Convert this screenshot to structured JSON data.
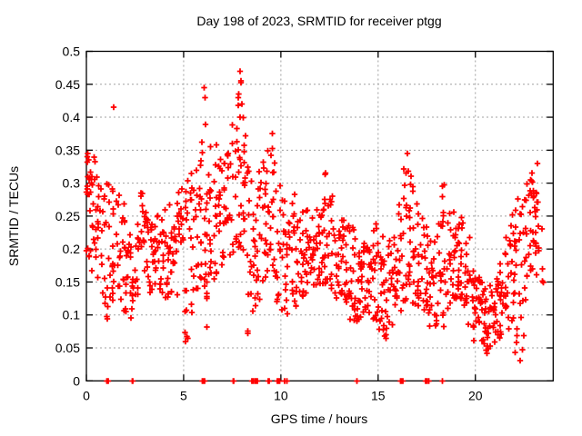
{
  "window": {
    "background": "#ffffff"
  },
  "chart_data": {
    "type": "scatter",
    "title": "Day 198 of 2023, SRMTID for receiver ptgg",
    "xlabel": "GPS time / hours",
    "ylabel": "SRMTID / TECUs",
    "xlim": [
      0,
      24
    ],
    "ylim": [
      0,
      0.5
    ],
    "grid": true,
    "legend": "none",
    "marker": "plus",
    "marker_color": "#ff0000",
    "grid_color": "#a0a0a0",
    "axis_color": "#000000",
    "xticks": [
      {
        "v": 0,
        "label": "0"
      },
      {
        "v": 5,
        "label": "5"
      },
      {
        "v": 10,
        "label": "10"
      },
      {
        "v": 15,
        "label": "15"
      },
      {
        "v": 20,
        "label": "20"
      }
    ],
    "yticks": [
      {
        "v": 0.0,
        "label": "0"
      },
      {
        "v": 0.05,
        "label": "0.05"
      },
      {
        "v": 0.1,
        "label": "0.1"
      },
      {
        "v": 0.15,
        "label": "0.15"
      },
      {
        "v": 0.2,
        "label": "0.2"
      },
      {
        "v": 0.25,
        "label": "0.25"
      },
      {
        "v": 0.3,
        "label": "0.3"
      },
      {
        "v": 0.35,
        "label": "0.35"
      },
      {
        "v": 0.4,
        "label": "0.4"
      },
      {
        "v": 0.45,
        "label": "0.45"
      },
      {
        "v": 0.5,
        "label": "0.5"
      }
    ],
    "density_columns_comment": "each row = [hour_start, y_min, y_max, n_points, bottom_bias] for a 0.25h column of + markers read from the plot",
    "density_columns": [
      [
        0.0,
        0.17,
        0.36,
        20,
        0.65
      ],
      [
        0.25,
        0.16,
        0.355,
        16,
        0.8
      ],
      [
        0.5,
        0.14,
        0.31,
        11,
        1
      ],
      [
        0.75,
        0.09,
        0.3,
        11,
        1
      ],
      [
        1.0,
        0.09,
        0.3,
        12,
        1.1
      ],
      [
        1.25,
        0.12,
        0.415,
        14,
        1.5
      ],
      [
        1.5,
        0.11,
        0.3,
        11,
        1.1
      ],
      [
        1.75,
        0.1,
        0.27,
        12,
        1.1
      ],
      [
        2.0,
        0.1,
        0.24,
        12,
        1.1
      ],
      [
        2.25,
        0.095,
        0.21,
        12,
        1.1
      ],
      [
        2.5,
        0.12,
        0.24,
        12,
        1
      ],
      [
        2.75,
        0.13,
        0.29,
        12,
        1.1
      ],
      [
        3.0,
        0.14,
        0.26,
        12,
        1
      ],
      [
        3.25,
        0.13,
        0.25,
        13,
        1
      ],
      [
        3.5,
        0.14,
        0.26,
        13,
        1
      ],
      [
        3.75,
        0.13,
        0.25,
        13,
        1
      ],
      [
        4.0,
        0.12,
        0.26,
        13,
        1
      ],
      [
        4.25,
        0.13,
        0.27,
        12,
        1
      ],
      [
        4.5,
        0.12,
        0.28,
        12,
        1
      ],
      [
        4.75,
        0.14,
        0.3,
        12,
        1
      ],
      [
        5.0,
        0.06,
        0.31,
        14,
        1.2
      ],
      [
        5.25,
        0.1,
        0.32,
        12,
        1
      ],
      [
        5.5,
        0.14,
        0.34,
        13,
        1
      ],
      [
        5.75,
        0.12,
        0.38,
        14,
        1.2
      ],
      [
        6.0,
        0.08,
        0.445,
        18,
        1.4
      ],
      [
        6.25,
        0.14,
        0.4,
        14,
        1.2
      ],
      [
        6.5,
        0.15,
        0.4,
        13,
        1.2
      ],
      [
        6.75,
        0.16,
        0.34,
        12,
        1
      ],
      [
        7.0,
        0.17,
        0.33,
        12,
        1
      ],
      [
        7.25,
        0.18,
        0.35,
        12,
        1
      ],
      [
        7.5,
        0.17,
        0.4,
        13,
        1.1
      ],
      [
        7.75,
        0.2,
        0.47,
        16,
        1.3
      ],
      [
        8.0,
        0.16,
        0.42,
        14,
        1.3
      ],
      [
        8.25,
        0.07,
        0.33,
        14,
        1.1
      ],
      [
        8.5,
        0.1,
        0.3,
        13,
        1.1
      ],
      [
        8.75,
        0.12,
        0.32,
        13,
        1
      ],
      [
        9.0,
        0.14,
        0.34,
        13,
        1
      ],
      [
        9.25,
        0.15,
        0.35,
        13,
        1
      ],
      [
        9.5,
        0.14,
        0.38,
        13,
        1.1
      ],
      [
        9.75,
        0.12,
        0.3,
        12,
        1.1
      ],
      [
        10.0,
        0.1,
        0.28,
        12,
        1.1
      ],
      [
        10.25,
        0.1,
        0.24,
        12,
        1.1
      ],
      [
        10.5,
        0.1,
        0.29,
        13,
        1.2
      ],
      [
        10.75,
        0.11,
        0.26,
        13,
        1.1
      ],
      [
        11.0,
        0.12,
        0.26,
        13,
        1
      ],
      [
        11.25,
        0.13,
        0.27,
        13,
        1
      ],
      [
        11.5,
        0.14,
        0.27,
        13,
        1
      ],
      [
        11.75,
        0.13,
        0.26,
        13,
        1
      ],
      [
        12.0,
        0.14,
        0.28,
        13,
        1
      ],
      [
        12.25,
        0.14,
        0.315,
        14,
        1
      ],
      [
        12.5,
        0.13,
        0.28,
        12,
        1
      ],
      [
        12.75,
        0.12,
        0.26,
        12,
        1
      ],
      [
        13.0,
        0.11,
        0.25,
        13,
        1
      ],
      [
        13.25,
        0.11,
        0.24,
        13,
        1
      ],
      [
        13.5,
        0.09,
        0.24,
        14,
        1.1
      ],
      [
        13.75,
        0.08,
        0.22,
        14,
        1
      ],
      [
        14.0,
        0.08,
        0.21,
        14,
        1
      ],
      [
        14.25,
        0.09,
        0.21,
        14,
        1
      ],
      [
        14.5,
        0.09,
        0.22,
        14,
        1
      ],
      [
        14.75,
        0.09,
        0.24,
        13,
        1.1
      ],
      [
        15.0,
        0.07,
        0.22,
        14,
        1
      ],
      [
        15.25,
        0.06,
        0.2,
        14,
        1
      ],
      [
        15.5,
        0.08,
        0.22,
        13,
        1
      ],
      [
        15.75,
        0.09,
        0.25,
        13,
        1.1
      ],
      [
        16.0,
        0.1,
        0.28,
        13,
        1.1
      ],
      [
        16.25,
        0.12,
        0.33,
        14,
        1.2
      ],
      [
        16.5,
        0.12,
        0.345,
        14,
        1.2
      ],
      [
        16.75,
        0.11,
        0.3,
        13,
        1.1
      ],
      [
        17.0,
        0.1,
        0.27,
        13,
        1.1
      ],
      [
        17.25,
        0.09,
        0.25,
        13,
        1.1
      ],
      [
        17.5,
        0.08,
        0.23,
        13,
        1
      ],
      [
        17.75,
        0.08,
        0.22,
        13,
        1
      ],
      [
        18.0,
        0.08,
        0.24,
        12,
        1.1
      ],
      [
        18.25,
        0.08,
        0.3,
        13,
        1.2
      ],
      [
        18.5,
        0.1,
        0.26,
        13,
        1.1
      ],
      [
        18.75,
        0.12,
        0.26,
        14,
        1
      ],
      [
        19.0,
        0.12,
        0.25,
        14,
        1
      ],
      [
        19.25,
        0.11,
        0.25,
        14,
        1
      ],
      [
        19.5,
        0.08,
        0.22,
        14,
        1.1
      ],
      [
        19.75,
        0.06,
        0.17,
        14,
        1
      ],
      [
        20.0,
        0.06,
        0.16,
        14,
        1
      ],
      [
        20.25,
        0.05,
        0.15,
        14,
        1
      ],
      [
        20.5,
        0.04,
        0.14,
        14,
        1
      ],
      [
        20.75,
        0.05,
        0.15,
        14,
        1
      ],
      [
        21.0,
        0.06,
        0.16,
        13,
        1
      ],
      [
        21.25,
        0.07,
        0.18,
        13,
        1
      ],
      [
        21.5,
        0.07,
        0.22,
        13,
        1
      ],
      [
        21.75,
        0.08,
        0.26,
        13,
        1
      ],
      [
        22.0,
        0.04,
        0.28,
        13,
        1
      ],
      [
        22.25,
        0.03,
        0.3,
        13,
        0.95
      ],
      [
        22.5,
        0.12,
        0.3,
        13,
        0.85
      ],
      [
        22.75,
        0.15,
        0.315,
        16,
        0.75
      ],
      [
        23.0,
        0.15,
        0.3,
        16,
        0.75
      ],
      [
        23.25,
        0.14,
        0.25,
        6,
        0.9
      ]
    ],
    "outlier_points": [
      [
        1.4,
        0.415
      ],
      [
        6.05,
        0.445
      ],
      [
        6.1,
        0.43
      ],
      [
        7.9,
        0.47
      ],
      [
        7.95,
        0.455
      ],
      [
        8.0,
        0.42
      ],
      [
        9.55,
        0.375
      ],
      [
        12.3,
        0.315
      ],
      [
        16.5,
        0.345
      ],
      [
        18.3,
        0.295
      ],
      [
        22.9,
        0.315
      ],
      [
        23.2,
        0.33
      ],
      [
        5.1,
        0.06
      ],
      [
        8.3,
        0.072
      ],
      [
        20.6,
        0.042
      ],
      [
        22.05,
        0.043
      ],
      [
        22.3,
        0.031
      ],
      [
        2.8,
        0.285
      ]
    ],
    "zero_line_marks_hours": [
      1.05,
      1.08,
      1.12,
      2.35,
      2.38,
      5.95,
      6.0,
      6.03,
      6.07,
      7.55,
      7.58,
      8.5,
      8.53,
      8.57,
      8.68,
      8.72,
      8.78,
      9.35,
      9.4,
      9.83,
      9.87,
      9.93,
      10.2,
      10.3,
      13.9,
      16.15,
      16.2,
      16.28,
      17.45,
      17.5,
      17.6,
      18.3
    ],
    "seed": 42
  }
}
